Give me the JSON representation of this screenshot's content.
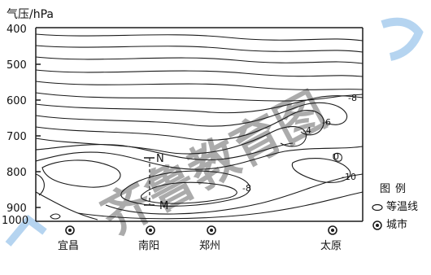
{
  "y_axis": {
    "title": "气压/hPa",
    "ticks": [
      "400",
      "500",
      "600",
      "700",
      "800",
      "900",
      "1000"
    ]
  },
  "cities": [
    "宜昌",
    "南阳",
    "郑州",
    "太原"
  ],
  "isoline_labels": [
    "-8",
    "-6",
    "-4",
    "0",
    "-10",
    "-8"
  ],
  "points": {
    "upper": "N",
    "lower": "M"
  },
  "legend": {
    "title": "图例",
    "isotherm": "等温线",
    "city": "城市"
  },
  "watermark": "齐鲁教育图",
  "colors": {
    "line": "#1a1a1a",
    "watermark": "#2e86d6"
  }
}
